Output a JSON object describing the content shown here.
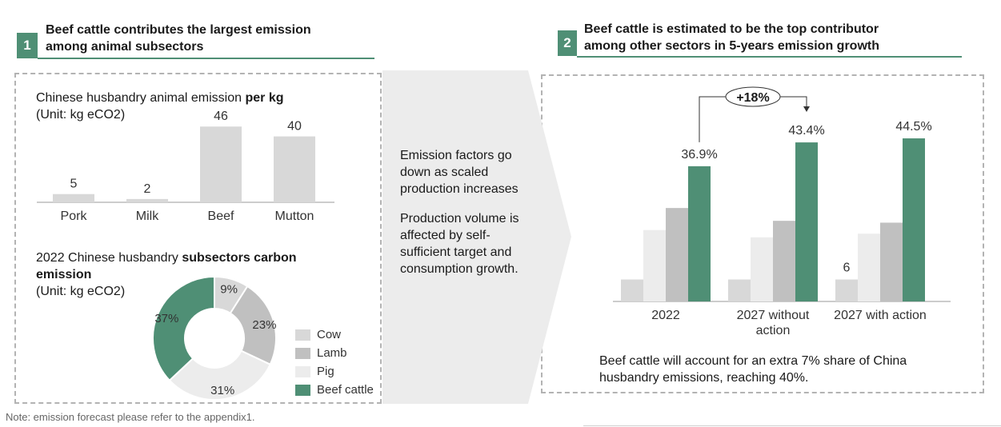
{
  "section1": {
    "number": "1",
    "title_line1": "Beef cattle contributes the largest emission",
    "title_line2": "among animal subsectors"
  },
  "section2": {
    "number": "2",
    "title_line1": "Beef cattle is estimated to be the top contributor",
    "title_line2": "among other sectors in 5-years emission growth"
  },
  "chart1_heading": {
    "line1_prefix": "Chinese husbandry animal emission ",
    "line1_bold": "per kg",
    "unit": "(Unit: kg eCO2)"
  },
  "chart2_heading": {
    "line1_prefix": "2022 Chinese husbandry ",
    "line1_bold": "subsectors carbon",
    "line2_bold": "emission",
    "unit": "(Unit: kg eCO2)"
  },
  "middle": {
    "para1": [
      "Emission factors go",
      "down as scaled",
      "production increases"
    ],
    "para2": [
      "Production volume is",
      "affected by self-",
      "sufficient target and",
      "consumption growth."
    ]
  },
  "chart3_annotation": "+18%",
  "chart3_note": [
    "Beef cattle will account for an extra 7% share of China",
    "husbandry emissions, reaching 40%."
  ],
  "footnote": "Note: emission forecast please refer to the appendix1.",
  "colors": {
    "green": "#4f8f75",
    "gray": "#c0c0c0",
    "light_gray": "#d8d8d8",
    "lighter_gray": "#ececec"
  },
  "chart_data": [
    {
      "type": "bar",
      "title": "Chinese husbandry animal emission per kg",
      "unit": "(Unit: kg eCO2)",
      "categories": [
        "Pork",
        "Milk",
        "Beef",
        "Mutton"
      ],
      "values": [
        5,
        2,
        46,
        40
      ],
      "data_labels": [
        "5",
        "2",
        "46",
        "40"
      ],
      "ylim": [
        0,
        50
      ]
    },
    {
      "type": "pie",
      "title": "2022 Chinese husbandry subsectors carbon emission",
      "unit": "(Unit: kg eCO2)",
      "slices": [
        {
          "name": "Cow",
          "value": 9,
          "label": "9%",
          "color": "#d8d8d8"
        },
        {
          "name": "Lamb",
          "value": 23,
          "label": "23%",
          "color": "#c0c0c0"
        },
        {
          "name": "Pig",
          "value": 31,
          "label": "31%",
          "color": "#ececec"
        },
        {
          "name": "Beef cattle",
          "value": 37,
          "label": "37%",
          "color": "#4f8f75"
        }
      ],
      "legend": [
        "Cow",
        "Lamb",
        "Pig",
        "Beef cattle"
      ],
      "legend_position": "right"
    },
    {
      "type": "bar",
      "categories": [
        "2022",
        "2027 without action",
        "2027 with action"
      ],
      "category_lines": [
        [
          "2022"
        ],
        [
          "2027 without",
          "action"
        ],
        [
          "2027 with action"
        ]
      ],
      "series": [
        {
          "color": "#d8d8d8",
          "values": [
            6,
            6,
            6
          ]
        },
        {
          "color": "#ececec",
          "values": [
            19.5,
            17.5,
            18.5
          ]
        },
        {
          "color": "#c0c0c0",
          "values": [
            25.5,
            22,
            21.5
          ]
        },
        {
          "color": "#4f8f75",
          "values": [
            36.9,
            43.4,
            44.5
          ]
        }
      ],
      "data_labels": [
        {
          "series": 3,
          "index": 0,
          "text": "36.9%"
        },
        {
          "series": 3,
          "index": 1,
          "text": "43.4%"
        },
        {
          "series": 3,
          "index": 2,
          "text": "44.5%"
        },
        {
          "series": 0,
          "index": 2,
          "text": "6"
        }
      ],
      "annotation": "+18%",
      "ylim": [
        0,
        48
      ]
    }
  ]
}
